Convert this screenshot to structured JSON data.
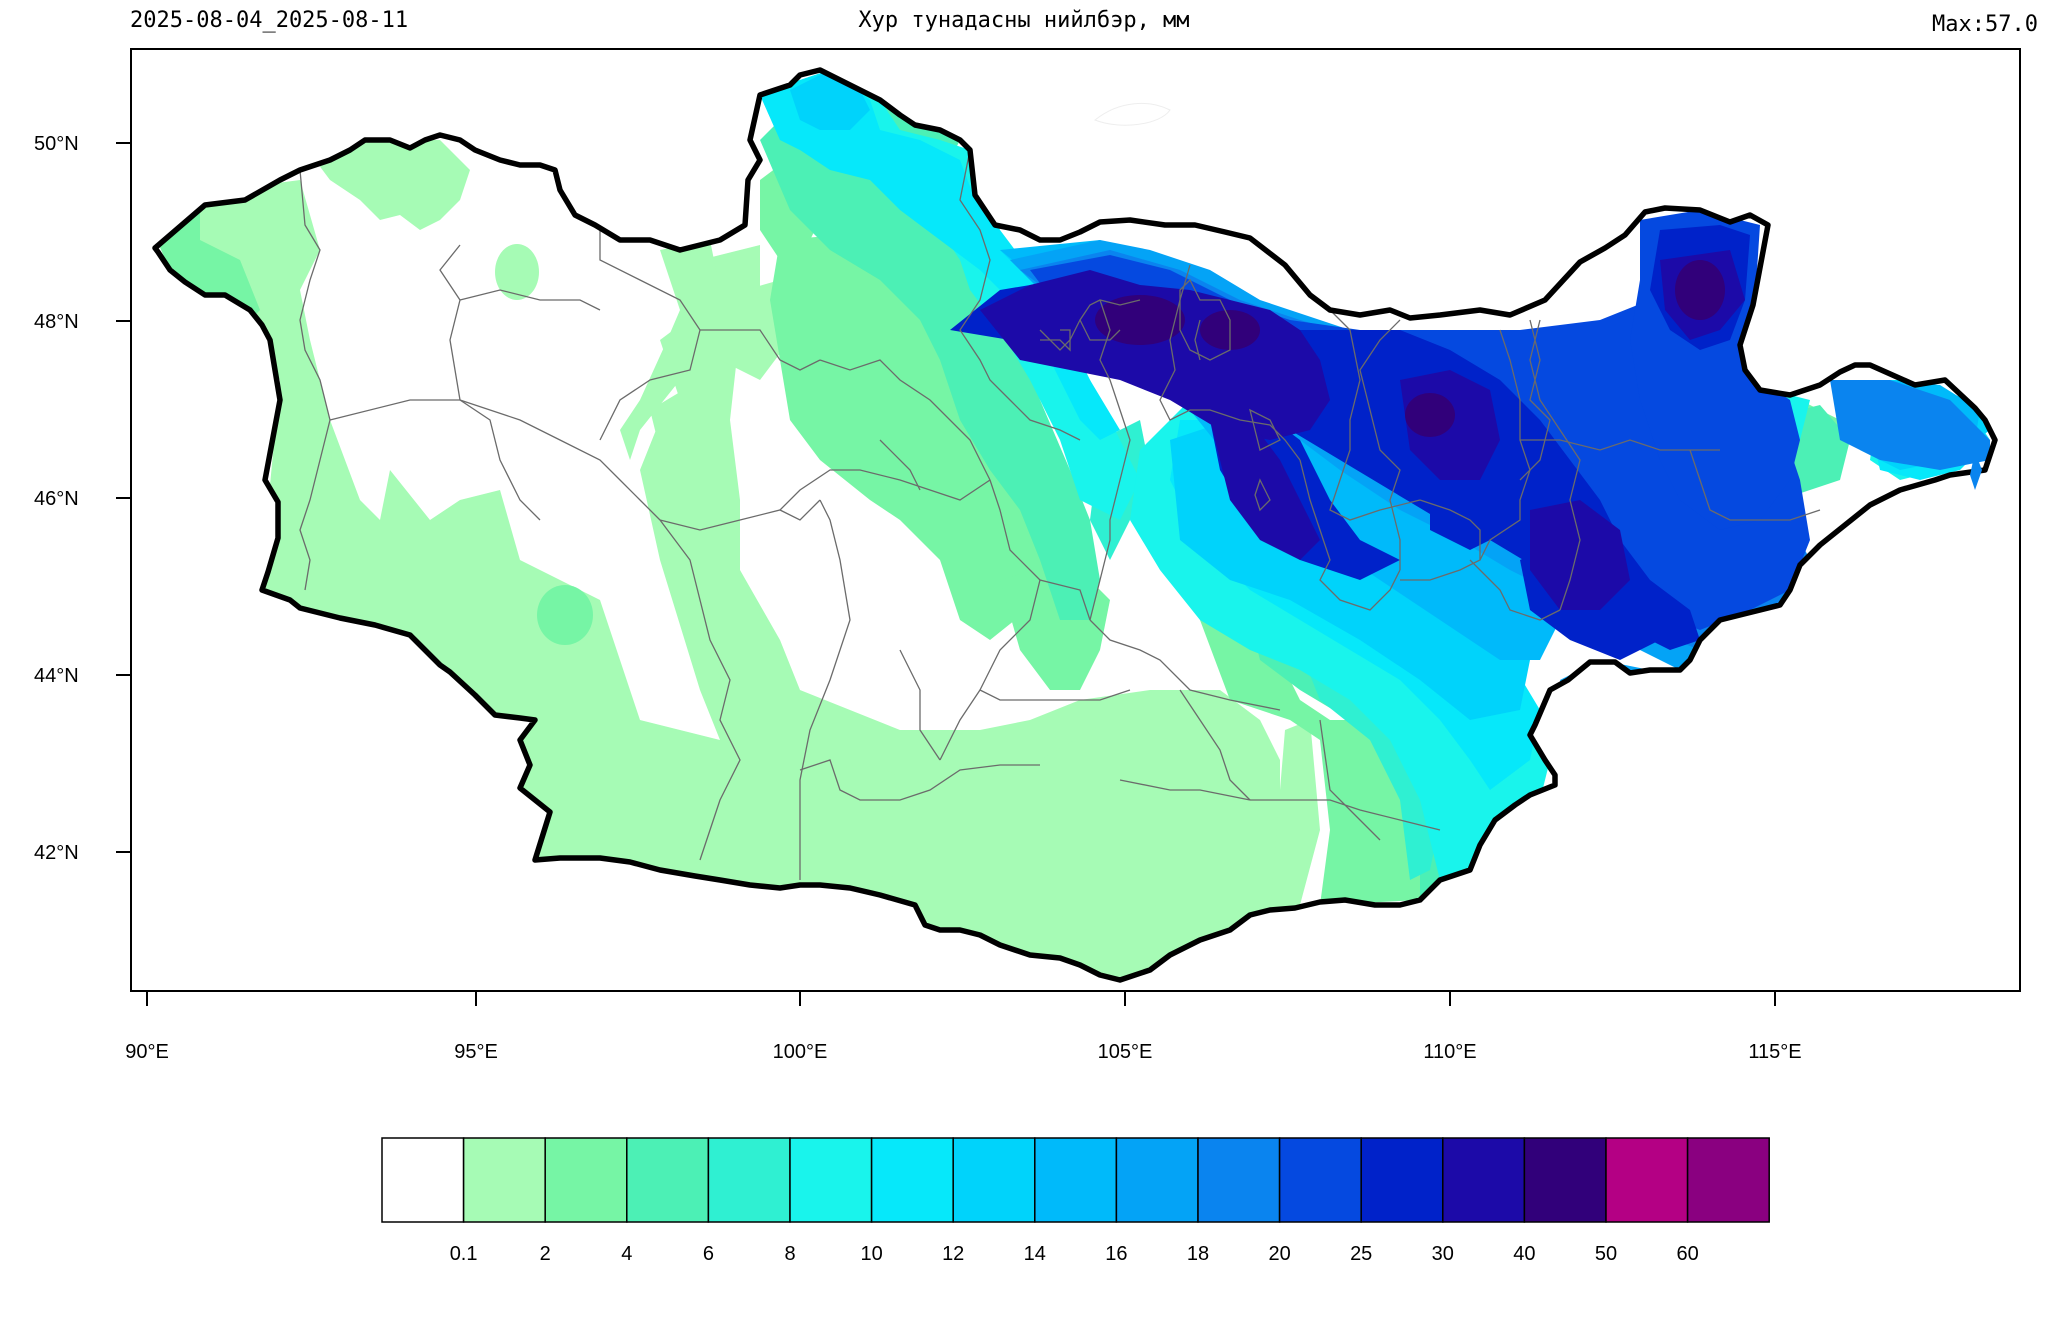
{
  "header": {
    "date_range": "2025-08-04_2025-08-11",
    "title": "Хур тунадасны нийлбэр, мм",
    "max_label": "Max:57.0"
  },
  "axes": {
    "lat_labels": [
      "50°N",
      "48°N",
      "46°N",
      "44°N",
      "42°N"
    ],
    "lon_labels": [
      "90°E",
      "95°E",
      "100°E",
      "105°E",
      "110°E",
      "115°E"
    ]
  },
  "legend": {
    "bins": [
      {
        "color": "#ffffff"
      },
      {
        "color": "#a6fbb5",
        "label": "0.1"
      },
      {
        "color": "#76f5a5",
        "label": "2"
      },
      {
        "color": "#4cf0b5",
        "label": "4"
      },
      {
        "color": "#2ff0d2",
        "label": "6"
      },
      {
        "color": "#19f4ec",
        "label": "8"
      },
      {
        "color": "#06e8fa",
        "label": "10"
      },
      {
        "color": "#00d3fb",
        "label": "12"
      },
      {
        "color": "#00bafa",
        "label": "14"
      },
      {
        "color": "#04a3f6",
        "label": "16"
      },
      {
        "color": "#0a84ef",
        "label": "18"
      },
      {
        "color": "#0549e0",
        "label": "20"
      },
      {
        "color": "#0022c9",
        "label": "25"
      },
      {
        "color": "#1c0aa8",
        "label": "30"
      },
      {
        "color": "#31007a",
        "label": "40"
      },
      {
        "color": "#b40084",
        "label": "50"
      },
      {
        "color": "#8a0080",
        "label": "60"
      }
    ]
  }
}
